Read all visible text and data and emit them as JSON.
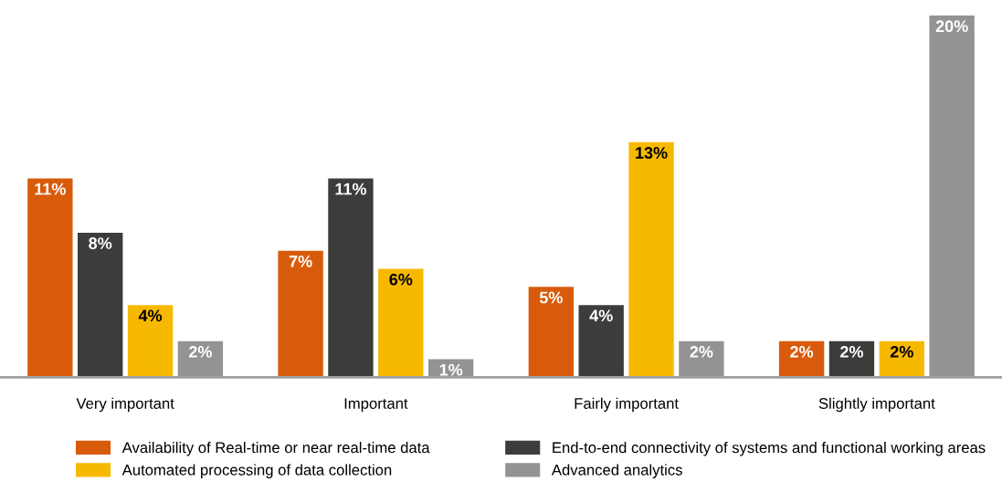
{
  "chart_data": {
    "type": "bar",
    "categories": [
      "Very important",
      "Important",
      "Fairly important",
      "Slightly important"
    ],
    "series": [
      {
        "name": "Availability of Real-time or near real-time data",
        "color": "#d85b0b",
        "values": [
          11,
          7,
          5,
          2
        ],
        "value_labels": [
          "11%",
          "7%",
          "5%",
          "2%"
        ]
      },
      {
        "name": "End-to-end connectivity of systems and functional working areas",
        "color": "#3c3c3b",
        "values": [
          8,
          11,
          4,
          2
        ],
        "value_labels": [
          "8%",
          "11%",
          "4%",
          "2%"
        ]
      },
      {
        "name": "Automated processing of data collection",
        "color": "#f7b900",
        "values": [
          4,
          6,
          13,
          2
        ],
        "value_labels": [
          "4%",
          "6%",
          "13%",
          "2%"
        ]
      },
      {
        "name": "Advanced analytics",
        "color": "#939393",
        "values": [
          2,
          1,
          2,
          20
        ],
        "value_labels": [
          "2%",
          "1%",
          "2%",
          "20%"
        ]
      }
    ],
    "legend": "bottom",
    "grid": false
  }
}
